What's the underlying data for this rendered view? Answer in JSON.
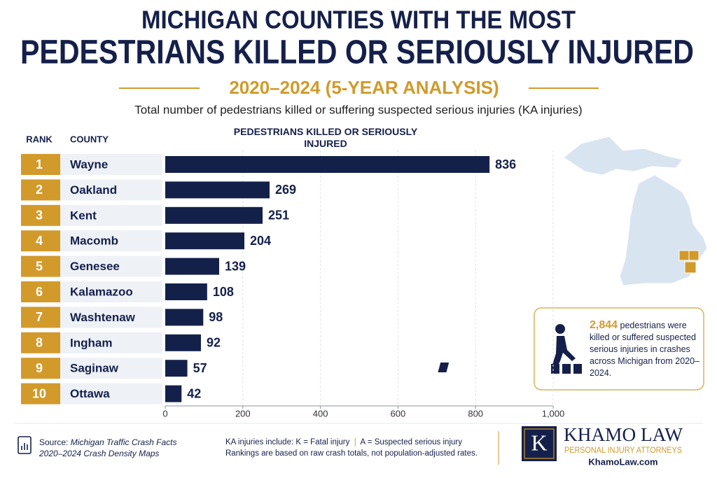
{
  "header": {
    "title_line1": "MICHIGAN COUNTIES WITH THE MOST",
    "title_line2": "PEDESTRIANS KILLED OR SERIOUSLY INJURED",
    "subtitle": "2020–2024 (5-YEAR ANALYSIS)",
    "description": "Total number of pedestrians killed or suffering suspected serious injuries (KA injuries)"
  },
  "chart_data": {
    "type": "bar",
    "orientation": "horizontal",
    "rank_header": "RANK",
    "category_header": "COUNTY",
    "value_header": "PEDESTRIANS KILLED OR SERIOUSLY INJURED",
    "ranks": [
      1,
      2,
      3,
      4,
      5,
      6,
      7,
      8,
      9,
      10
    ],
    "categories": [
      "Wayne",
      "Oakland",
      "Kent",
      "Macomb",
      "Genesee",
      "Kalamazoo",
      "Washtenaw",
      "Ingham",
      "Saginaw",
      "Ottawa"
    ],
    "values": [
      836,
      269,
      251,
      204,
      139,
      108,
      98,
      92,
      57,
      42
    ],
    "color": "#13214a",
    "rank_color": "#d19a2a",
    "xlim": [
      0,
      1000
    ],
    "xticks": [
      0,
      200,
      400,
      600,
      800,
      {
        "value": 1000,
        "label": "1,000"
      }
    ],
    "grid": true
  },
  "callout": {
    "highlight": "2,844",
    "text": "pedestrians were killed or suffered suspected serious injuries in crashes across Michigan from 2020–2024."
  },
  "footer": {
    "source_label": "Source:",
    "source_line1": "Michigan Traffic Crash Facts",
    "source_line2": "2020–2024 Crash Density Maps",
    "note_k": "KA injuries include: K = Fatal injury",
    "note_a": "A = Suspected serious injury",
    "note_rank": "Rankings are based on raw crash totals, not population-adjusted rates.",
    "logo_initial": "K",
    "logo_name": "KHAMO LAW",
    "logo_tagline": "PERSONAL INJURY ATTORNEYS",
    "logo_url": "KhamoLaw.com"
  }
}
